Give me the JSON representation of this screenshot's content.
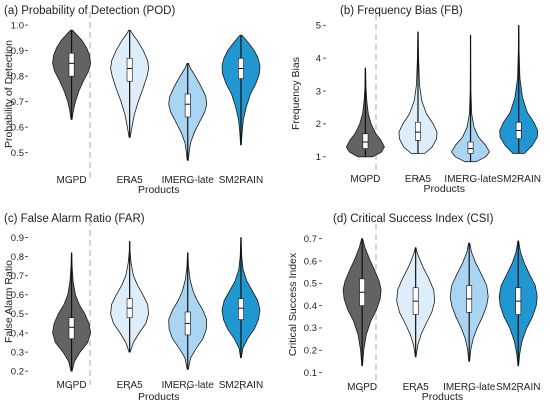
{
  "colors": {
    "MGPD": "#636363",
    "ERA5": "#ddeefa",
    "IMERG-late": "#a9d4f2",
    "SM2RAIN": "#2097d0",
    "divider": "#aaaaaa"
  },
  "chart_data": [
    {
      "type": "violin",
      "title": "(a) Probability of Detection (POD)",
      "xlabel": "Products",
      "ylabel": "Probability of Detection",
      "categories": [
        "MGPD",
        "ERA5",
        "IMERG-late",
        "SM2RAIN"
      ],
      "yticks": [
        0.5,
        0.6,
        0.7,
        0.8,
        0.9,
        1.0
      ],
      "yticklabels": [
        "0.5",
        "0.6",
        "0.7",
        "0.8",
        "0.9",
        "1.0"
      ],
      "ylim": [
        0.44,
        1.02
      ],
      "series": [
        {
          "min": 0.63,
          "max": 0.98,
          "q1": 0.8,
          "median": 0.85,
          "q3": 0.89,
          "density": [
            [
              0.63,
              0.03
            ],
            [
              0.66,
              0.08
            ],
            [
              0.7,
              0.2
            ],
            [
              0.74,
              0.38
            ],
            [
              0.78,
              0.62
            ],
            [
              0.82,
              0.9
            ],
            [
              0.85,
              1.0
            ],
            [
              0.88,
              0.95
            ],
            [
              0.91,
              0.8
            ],
            [
              0.94,
              0.55
            ],
            [
              0.96,
              0.3
            ],
            [
              0.98,
              0.05
            ]
          ]
        },
        {
          "min": 0.56,
          "max": 0.98,
          "q1": 0.78,
          "median": 0.83,
          "q3": 0.87,
          "density": [
            [
              0.56,
              0.03
            ],
            [
              0.6,
              0.12
            ],
            [
              0.65,
              0.25
            ],
            [
              0.7,
              0.45
            ],
            [
              0.75,
              0.7
            ],
            [
              0.8,
              0.92
            ],
            [
              0.83,
              1.0
            ],
            [
              0.86,
              0.95
            ],
            [
              0.9,
              0.72
            ],
            [
              0.94,
              0.4
            ],
            [
              0.96,
              0.2
            ],
            [
              0.98,
              0.04
            ]
          ]
        },
        {
          "min": 0.47,
          "max": 0.85,
          "q1": 0.64,
          "median": 0.69,
          "q3": 0.73,
          "density": [
            [
              0.47,
              0.03
            ],
            [
              0.5,
              0.07
            ],
            [
              0.54,
              0.15
            ],
            [
              0.58,
              0.35
            ],
            [
              0.62,
              0.62
            ],
            [
              0.66,
              0.9
            ],
            [
              0.69,
              1.0
            ],
            [
              0.72,
              0.95
            ],
            [
              0.76,
              0.7
            ],
            [
              0.8,
              0.4
            ],
            [
              0.83,
              0.15
            ],
            [
              0.85,
              0.04
            ]
          ]
        },
        {
          "min": 0.53,
          "max": 0.96,
          "q1": 0.79,
          "median": 0.83,
          "q3": 0.87,
          "density": [
            [
              0.53,
              0.02
            ],
            [
              0.58,
              0.06
            ],
            [
              0.63,
              0.13
            ],
            [
              0.68,
              0.28
            ],
            [
              0.73,
              0.5
            ],
            [
              0.77,
              0.78
            ],
            [
              0.81,
              0.97
            ],
            [
              0.84,
              1.0
            ],
            [
              0.87,
              0.9
            ],
            [
              0.9,
              0.7
            ],
            [
              0.93,
              0.4
            ],
            [
              0.96,
              0.05
            ]
          ]
        }
      ]
    },
    {
      "type": "violin",
      "title": "(b) Frequency Bias (FB)",
      "xlabel": "Products",
      "ylabel": "Frequency Bias",
      "categories": [
        "MGPD",
        "ERA5",
        "IMERG-late",
        "SM2RAIN"
      ],
      "yticks": [
        1,
        2,
        3,
        4,
        5
      ],
      "yticklabels": [
        "1",
        "2",
        "3",
        "4",
        "5"
      ],
      "ylim": [
        0.75,
        5.1
      ],
      "series": [
        {
          "min": 1.0,
          "max": 3.7,
          "q1": 1.25,
          "median": 1.45,
          "q3": 1.7,
          "density": [
            [
              1.0,
              0.4
            ],
            [
              1.15,
              0.85
            ],
            [
              1.3,
              1.0
            ],
            [
              1.5,
              0.82
            ],
            [
              1.7,
              0.55
            ],
            [
              2.0,
              0.3
            ],
            [
              2.3,
              0.15
            ],
            [
              2.7,
              0.07
            ],
            [
              3.1,
              0.03
            ],
            [
              3.7,
              0.01
            ]
          ]
        },
        {
          "min": 1.1,
          "max": 4.8,
          "q1": 1.5,
          "median": 1.75,
          "q3": 2.05,
          "density": [
            [
              1.1,
              0.35
            ],
            [
              1.3,
              0.75
            ],
            [
              1.55,
              0.98
            ],
            [
              1.75,
              1.0
            ],
            [
              2.0,
              0.8
            ],
            [
              2.3,
              0.45
            ],
            [
              2.7,
              0.2
            ],
            [
              3.2,
              0.08
            ],
            [
              4.0,
              0.03
            ],
            [
              4.8,
              0.01
            ]
          ]
        },
        {
          "min": 0.85,
          "max": 4.7,
          "q1": 1.1,
          "median": 1.25,
          "q3": 1.45,
          "density": [
            [
              0.85,
              0.3
            ],
            [
              1.0,
              0.8
            ],
            [
              1.15,
              1.0
            ],
            [
              1.35,
              0.8
            ],
            [
              1.6,
              0.42
            ],
            [
              1.9,
              0.18
            ],
            [
              2.3,
              0.06
            ],
            [
              3.0,
              0.02
            ],
            [
              3.8,
              0.01
            ],
            [
              4.7,
              0.005
            ]
          ]
        },
        {
          "min": 1.1,
          "max": 5.0,
          "q1": 1.55,
          "median": 1.8,
          "q3": 2.05,
          "density": [
            [
              1.1,
              0.3
            ],
            [
              1.35,
              0.72
            ],
            [
              1.6,
              0.98
            ],
            [
              1.8,
              1.0
            ],
            [
              2.05,
              0.8
            ],
            [
              2.35,
              0.45
            ],
            [
              2.8,
              0.2
            ],
            [
              3.4,
              0.06
            ],
            [
              4.2,
              0.02
            ],
            [
              5.0,
              0.005
            ]
          ]
        }
      ]
    },
    {
      "type": "violin",
      "title": "(c) False Alarm Ratio (FAR)",
      "xlabel": "Products",
      "ylabel": "False Alarm Ratio",
      "categories": [
        "MGPD",
        "ERA5",
        "IMERG-late",
        "SM2RAIN"
      ],
      "yticks": [
        0.2,
        0.3,
        0.4,
        0.5,
        0.6,
        0.7,
        0.8,
        0.9
      ],
      "yticklabels": [
        "0.2",
        "0.3",
        "0.4",
        "0.5",
        "0.6",
        "0.7",
        "0.8",
        "0.9"
      ],
      "ylim": [
        0.18,
        0.95
      ],
      "series": [
        {
          "min": 0.2,
          "max": 0.82,
          "q1": 0.37,
          "median": 0.43,
          "q3": 0.48,
          "density": [
            [
              0.2,
              0.03
            ],
            [
              0.25,
              0.15
            ],
            [
              0.3,
              0.45
            ],
            [
              0.35,
              0.85
            ],
            [
              0.4,
              1.0
            ],
            [
              0.45,
              0.92
            ],
            [
              0.5,
              0.7
            ],
            [
              0.55,
              0.4
            ],
            [
              0.6,
              0.2
            ],
            [
              0.67,
              0.08
            ],
            [
              0.75,
              0.03
            ],
            [
              0.82,
              0.01
            ]
          ]
        },
        {
          "min": 0.3,
          "max": 0.88,
          "q1": 0.48,
          "median": 0.53,
          "q3": 0.58,
          "density": [
            [
              0.3,
              0.03
            ],
            [
              0.35,
              0.2
            ],
            [
              0.4,
              0.5
            ],
            [
              0.45,
              0.85
            ],
            [
              0.5,
              1.0
            ],
            [
              0.55,
              0.95
            ],
            [
              0.6,
              0.7
            ],
            [
              0.65,
              0.42
            ],
            [
              0.7,
              0.2
            ],
            [
              0.77,
              0.07
            ],
            [
              0.83,
              0.02
            ],
            [
              0.88,
              0.01
            ]
          ]
        },
        {
          "min": 0.21,
          "max": 0.82,
          "q1": 0.39,
          "median": 0.45,
          "q3": 0.51,
          "density": [
            [
              0.21,
              0.03
            ],
            [
              0.27,
              0.15
            ],
            [
              0.32,
              0.45
            ],
            [
              0.37,
              0.8
            ],
            [
              0.42,
              0.98
            ],
            [
              0.47,
              1.0
            ],
            [
              0.52,
              0.8
            ],
            [
              0.57,
              0.5
            ],
            [
              0.62,
              0.28
            ],
            [
              0.68,
              0.12
            ],
            [
              0.75,
              0.04
            ],
            [
              0.82,
              0.01
            ]
          ]
        },
        {
          "min": 0.27,
          "max": 0.9,
          "q1": 0.47,
          "median": 0.53,
          "q3": 0.58,
          "density": [
            [
              0.27,
              0.02
            ],
            [
              0.32,
              0.1
            ],
            [
              0.37,
              0.35
            ],
            [
              0.42,
              0.7
            ],
            [
              0.47,
              0.92
            ],
            [
              0.52,
              1.0
            ],
            [
              0.57,
              0.88
            ],
            [
              0.62,
              0.6
            ],
            [
              0.67,
              0.32
            ],
            [
              0.73,
              0.12
            ],
            [
              0.8,
              0.04
            ],
            [
              0.9,
              0.01
            ]
          ]
        }
      ]
    },
    {
      "type": "violin",
      "title": "(d) Critical Success Index (CSI)",
      "xlabel": "Products",
      "ylabel": "Critical Success Index",
      "categories": [
        "MGPD",
        "ERA5",
        "IMERG-late",
        "SM2RAIN"
      ],
      "yticks": [
        0.1,
        0.2,
        0.3,
        0.4,
        0.5,
        0.6,
        0.7
      ],
      "yticklabels": [
        "0.1",
        "0.2",
        "0.3",
        "0.4",
        "0.5",
        "0.6",
        "0.7"
      ],
      "ylim": [
        0.08,
        0.73
      ],
      "series": [
        {
          "min": 0.13,
          "max": 0.7,
          "q1": 0.4,
          "median": 0.46,
          "q3": 0.52,
          "density": [
            [
              0.13,
              0.02
            ],
            [
              0.2,
              0.08
            ],
            [
              0.27,
              0.22
            ],
            [
              0.33,
              0.45
            ],
            [
              0.38,
              0.75
            ],
            [
              0.43,
              0.95
            ],
            [
              0.47,
              1.0
            ],
            [
              0.51,
              0.9
            ],
            [
              0.56,
              0.65
            ],
            [
              0.61,
              0.38
            ],
            [
              0.66,
              0.15
            ],
            [
              0.7,
              0.03
            ]
          ]
        },
        {
          "min": 0.17,
          "max": 0.66,
          "q1": 0.36,
          "median": 0.42,
          "q3": 0.48,
          "density": [
            [
              0.17,
              0.02
            ],
            [
              0.22,
              0.1
            ],
            [
              0.27,
              0.28
            ],
            [
              0.32,
              0.55
            ],
            [
              0.37,
              0.85
            ],
            [
              0.42,
              1.0
            ],
            [
              0.47,
              0.95
            ],
            [
              0.52,
              0.7
            ],
            [
              0.57,
              0.4
            ],
            [
              0.61,
              0.2
            ],
            [
              0.64,
              0.07
            ],
            [
              0.66,
              0.02
            ]
          ]
        },
        {
          "min": 0.15,
          "max": 0.68,
          "q1": 0.37,
          "median": 0.43,
          "q3": 0.49,
          "density": [
            [
              0.15,
              0.02
            ],
            [
              0.2,
              0.08
            ],
            [
              0.25,
              0.2
            ],
            [
              0.3,
              0.42
            ],
            [
              0.35,
              0.7
            ],
            [
              0.4,
              0.92
            ],
            [
              0.44,
              1.0
            ],
            [
              0.49,
              0.92
            ],
            [
              0.54,
              0.65
            ],
            [
              0.59,
              0.35
            ],
            [
              0.64,
              0.12
            ],
            [
              0.68,
              0.03
            ]
          ]
        },
        {
          "min": 0.13,
          "max": 0.69,
          "q1": 0.36,
          "median": 0.42,
          "q3": 0.48,
          "density": [
            [
              0.13,
              0.02
            ],
            [
              0.18,
              0.07
            ],
            [
              0.24,
              0.2
            ],
            [
              0.3,
              0.45
            ],
            [
              0.35,
              0.75
            ],
            [
              0.4,
              0.95
            ],
            [
              0.44,
              1.0
            ],
            [
              0.49,
              0.9
            ],
            [
              0.54,
              0.6
            ],
            [
              0.59,
              0.32
            ],
            [
              0.64,
              0.12
            ],
            [
              0.69,
              0.02
            ]
          ]
        }
      ]
    }
  ]
}
